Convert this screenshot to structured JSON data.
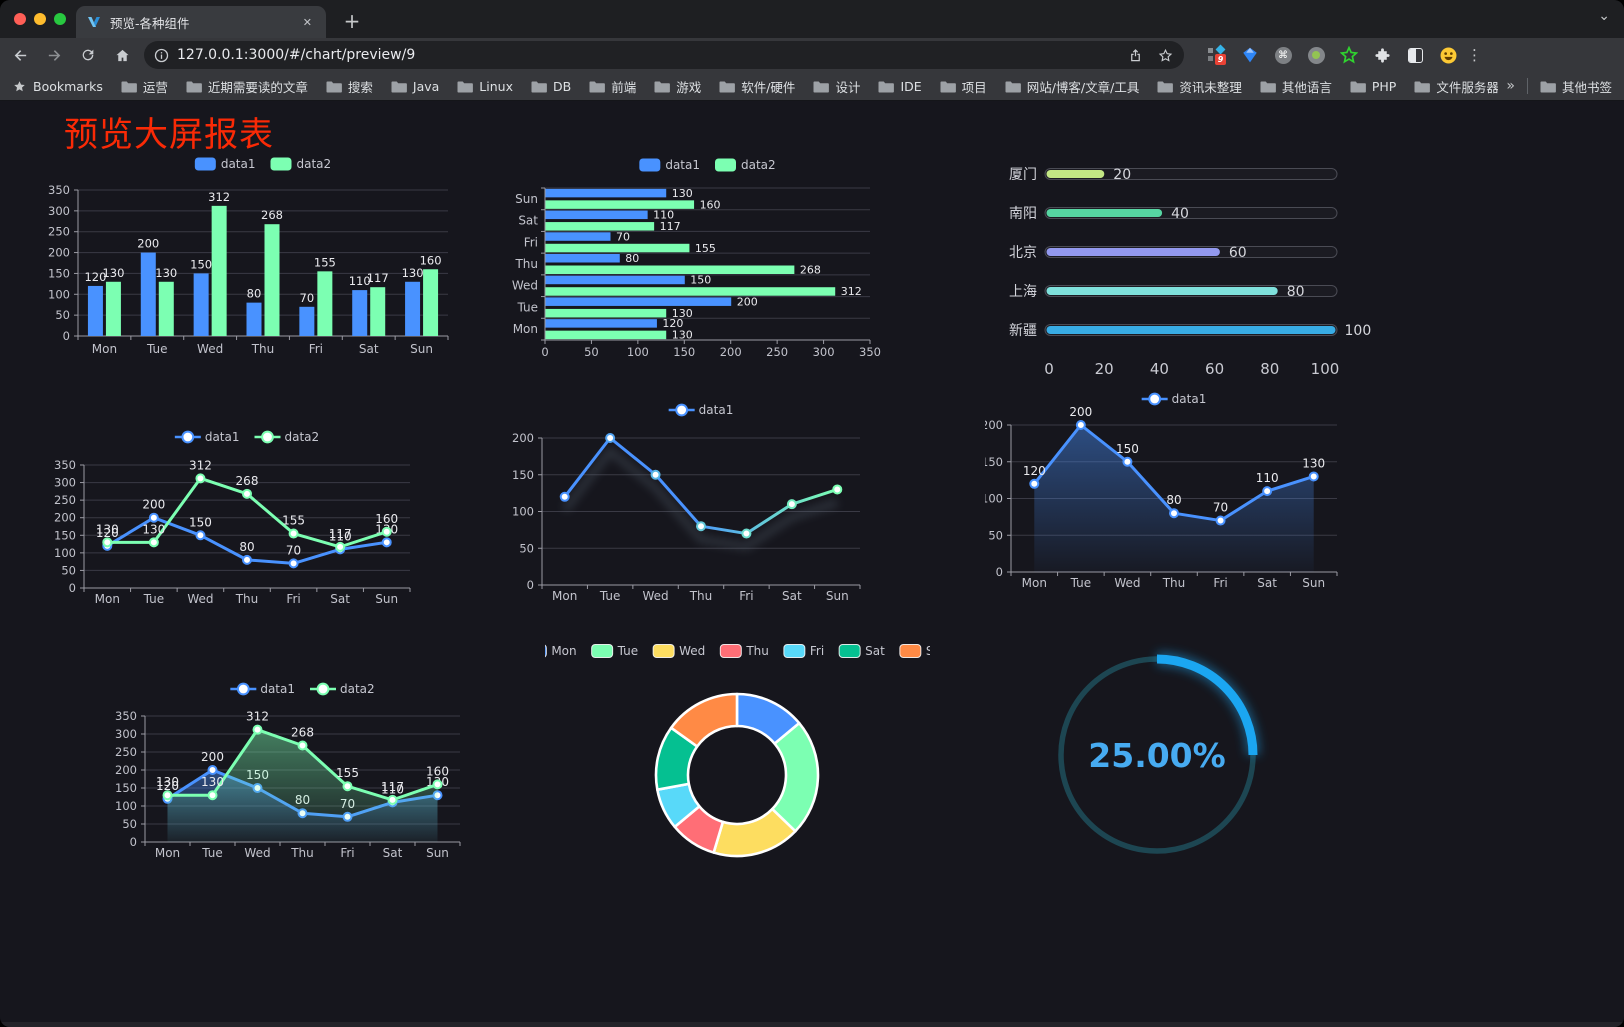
{
  "browser": {
    "tab_title": "预览-各种组件",
    "close_glyph": "✕",
    "new_tab_glyph": "+",
    "chevron_glyph": "⌄",
    "url": "127.0.0.1:3000/#/chart/preview/9",
    "extension_badge": "9",
    "command_glyph": "⌘",
    "menu_dots_glyph": "⋮",
    "bookmarks_root_label": "Bookmarks",
    "bookmark_folders": [
      "运营",
      "近期需要读的文章",
      "搜索",
      "Java",
      "Linux",
      "DB",
      "前端",
      "游戏",
      "软件/硬件",
      "设计",
      "IDE",
      "项目",
      "网站/博客/文章/工具",
      "资讯未整理",
      "其他语言",
      "PHP",
      "文件服务器"
    ],
    "bookmarks_overflow_glyph": "»",
    "other_bookmarks_label": "其他书签"
  },
  "page": {
    "title": "预览大屏报表",
    "title_color": "#fa2a06",
    "background": "#16161d"
  },
  "palette": {
    "blue": "#4992ff",
    "green": "#7cffb2",
    "yellow": "#fddd60",
    "red": "#ff6e76",
    "cyan": "#58d9f9",
    "teal": "#05c091",
    "orange": "#ff8a45"
  },
  "chart_data": [
    {
      "id": "grouped-bar",
      "type": "bar",
      "categories": [
        "Mon",
        "Tue",
        "Wed",
        "Thu",
        "Fri",
        "Sat",
        "Sun"
      ],
      "series": [
        {
          "name": "data1",
          "color": "#4992ff",
          "values": [
            120,
            200,
            150,
            80,
            70,
            110,
            130
          ]
        },
        {
          "name": "data2",
          "color": "#7cffb2",
          "values": [
            130,
            130,
            312,
            268,
            155,
            117,
            160
          ]
        }
      ],
      "ylim": [
        0,
        350
      ],
      "ytick": 50,
      "grid": true,
      "legend_position": "top",
      "value_labels": true
    },
    {
      "id": "horizontal-bar",
      "type": "bar-horizontal",
      "categories": [
        "Mon",
        "Tue",
        "Wed",
        "Thu",
        "Fri",
        "Sat",
        "Sun"
      ],
      "series": [
        {
          "name": "data1",
          "color": "#4992ff",
          "values": [
            120,
            200,
            150,
            80,
            70,
            110,
            130
          ]
        },
        {
          "name": "data2",
          "color": "#7cffb2",
          "values": [
            130,
            130,
            312,
            268,
            155,
            117,
            160
          ]
        }
      ],
      "xlim": [
        0,
        350
      ],
      "xtick": 50,
      "grid": true,
      "legend_position": "top",
      "value_labels": true
    },
    {
      "id": "progress-list",
      "type": "progress-bars",
      "items": [
        {
          "label": "厦门",
          "value": 20,
          "color": "#c3e784"
        },
        {
          "label": "南阳",
          "value": 40,
          "color": "#56d5a2"
        },
        {
          "label": "北京",
          "value": 60,
          "color": "#9399ef"
        },
        {
          "label": "上海",
          "value": 80,
          "color": "#7fe1dc"
        },
        {
          "label": "新疆",
          "value": 100,
          "color": "#38ace5"
        }
      ],
      "xlim": [
        0,
        100
      ],
      "xticks": [
        0,
        20,
        40,
        60,
        80,
        100
      ]
    },
    {
      "id": "line-two-series",
      "type": "line",
      "categories": [
        "Mon",
        "Tue",
        "Wed",
        "Thu",
        "Fri",
        "Sat",
        "Sun"
      ],
      "series": [
        {
          "name": "data1",
          "color": "#4992ff",
          "values": [
            120,
            200,
            150,
            80,
            70,
            110,
            130
          ]
        },
        {
          "name": "data2",
          "color": "#7cffb2",
          "values": [
            130,
            130,
            312,
            268,
            155,
            117,
            160
          ]
        }
      ],
      "ylim": [
        0,
        350
      ],
      "ytick": 50,
      "legend_position": "top",
      "value_labels": true
    },
    {
      "id": "gradient-line",
      "type": "line",
      "categories": [
        "Mon",
        "Tue",
        "Wed",
        "Thu",
        "Fri",
        "Sat",
        "Sun"
      ],
      "series": [
        {
          "name": "data1",
          "color": "#4992ff",
          "gradient": [
            "#4992ff",
            "#7cffb2"
          ],
          "values": [
            120,
            200,
            150,
            80,
            70,
            110,
            130
          ]
        }
      ],
      "ylim": [
        0,
        200
      ],
      "ytick": 50,
      "legend_position": "top",
      "value_labels": false,
      "shadow": true
    },
    {
      "id": "area-single",
      "type": "area",
      "categories": [
        "Mon",
        "Tue",
        "Wed",
        "Thu",
        "Fri",
        "Sat",
        "Sun"
      ],
      "series": [
        {
          "name": "data1",
          "color": "#4992ff",
          "values": [
            120,
            200,
            150,
            80,
            70,
            110,
            130
          ],
          "area": true
        }
      ],
      "ylim": [
        0,
        200
      ],
      "ytick": 50,
      "legend_position": "top",
      "value_labels": true
    },
    {
      "id": "area-two-series",
      "type": "area",
      "categories": [
        "Mon",
        "Tue",
        "Wed",
        "Thu",
        "Fri",
        "Sat",
        "Sun"
      ],
      "series": [
        {
          "name": "data1",
          "color": "#4992ff",
          "values": [
            120,
            200,
            150,
            80,
            70,
            110,
            130
          ],
          "area": true
        },
        {
          "name": "data2",
          "color": "#7cffb2",
          "values": [
            130,
            130,
            312,
            268,
            155,
            117,
            160
          ],
          "area": true
        }
      ],
      "ylim": [
        0,
        350
      ],
      "ytick": 50,
      "legend_position": "top",
      "value_labels": true
    },
    {
      "id": "donut",
      "type": "pie",
      "categories": [
        "Mon",
        "Tue",
        "Wed",
        "Thu",
        "Fri",
        "Sat",
        "Sun"
      ],
      "values": [
        120,
        200,
        150,
        80,
        70,
        110,
        130
      ],
      "colors": [
        "#4992ff",
        "#7cffb2",
        "#fddd60",
        "#ff6e76",
        "#58d9f9",
        "#05c091",
        "#ff8a45"
      ],
      "legend_position": "top",
      "inner_radius_ratio": 0.6,
      "border_color": "#ffffff"
    },
    {
      "id": "progress-ring",
      "type": "ring",
      "label": "25.00%",
      "percent": 25,
      "color": "#1ba6f1",
      "track_color": "#1d4652",
      "text_color": "#47abf1"
    }
  ]
}
